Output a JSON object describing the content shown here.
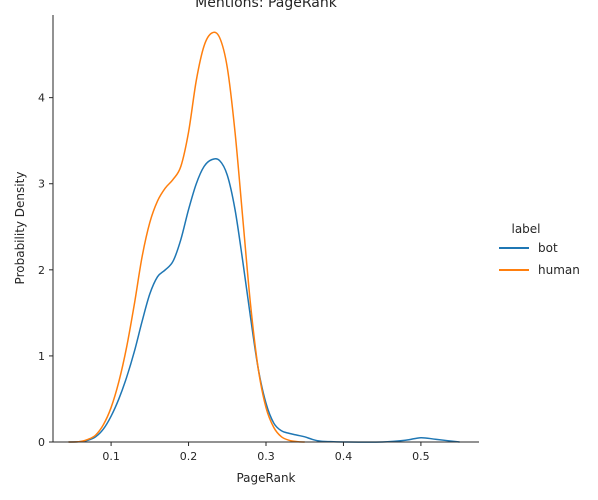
{
  "chart_data": {
    "type": "line",
    "title": "Mentions: PageRank",
    "xlabel": "PageRank",
    "ylabel": "Probability Density",
    "xlim": [
      0.025,
      0.575
    ],
    "ylim": [
      0,
      4.96
    ],
    "xticks": [
      0.1,
      0.2,
      0.3,
      0.4,
      0.5
    ],
    "xtick_labels": [
      "0.1",
      "0.2",
      "0.3",
      "0.4",
      "0.5"
    ],
    "yticks": [
      0,
      1,
      2,
      3,
      4
    ],
    "ytick_labels": [
      "0",
      "1",
      "2",
      "3",
      "4"
    ],
    "grid": false,
    "legend": {
      "title": "label",
      "placement": "right"
    },
    "series": [
      {
        "name": "bot",
        "color": "#1f77b4",
        "x": [
          0.045,
          0.06,
          0.07,
          0.08,
          0.09,
          0.1,
          0.11,
          0.12,
          0.13,
          0.14,
          0.15,
          0.16,
          0.17,
          0.18,
          0.19,
          0.2,
          0.21,
          0.22,
          0.23,
          0.24,
          0.25,
          0.26,
          0.27,
          0.28,
          0.29,
          0.3,
          0.31,
          0.32,
          0.33,
          0.34,
          0.35,
          0.36,
          0.37,
          0.38,
          0.4,
          0.45,
          0.48,
          0.5,
          0.52,
          0.55
        ],
        "y": [
          0.0,
          0.005,
          0.02,
          0.06,
          0.15,
          0.3,
          0.5,
          0.75,
          1.05,
          1.4,
          1.72,
          1.92,
          2.0,
          2.1,
          2.35,
          2.7,
          3.0,
          3.2,
          3.28,
          3.27,
          3.1,
          2.7,
          2.1,
          1.45,
          0.85,
          0.45,
          0.22,
          0.13,
          0.1,
          0.08,
          0.06,
          0.03,
          0.01,
          0.005,
          0.0,
          0.0,
          0.02,
          0.05,
          0.03,
          0.0
        ]
      },
      {
        "name": "human",
        "color": "#ff7f0e",
        "x": [
          0.045,
          0.06,
          0.07,
          0.08,
          0.09,
          0.1,
          0.11,
          0.12,
          0.13,
          0.14,
          0.15,
          0.16,
          0.17,
          0.18,
          0.19,
          0.2,
          0.21,
          0.22,
          0.23,
          0.24,
          0.25,
          0.26,
          0.27,
          0.28,
          0.29,
          0.3,
          0.31,
          0.32,
          0.33,
          0.34,
          0.35
        ],
        "y": [
          0.0,
          0.005,
          0.03,
          0.08,
          0.2,
          0.4,
          0.7,
          1.1,
          1.6,
          2.15,
          2.55,
          2.8,
          2.95,
          3.05,
          3.2,
          3.6,
          4.2,
          4.6,
          4.75,
          4.7,
          4.35,
          3.6,
          2.6,
          1.6,
          0.85,
          0.4,
          0.17,
          0.06,
          0.02,
          0.005,
          0.0
        ]
      }
    ]
  }
}
